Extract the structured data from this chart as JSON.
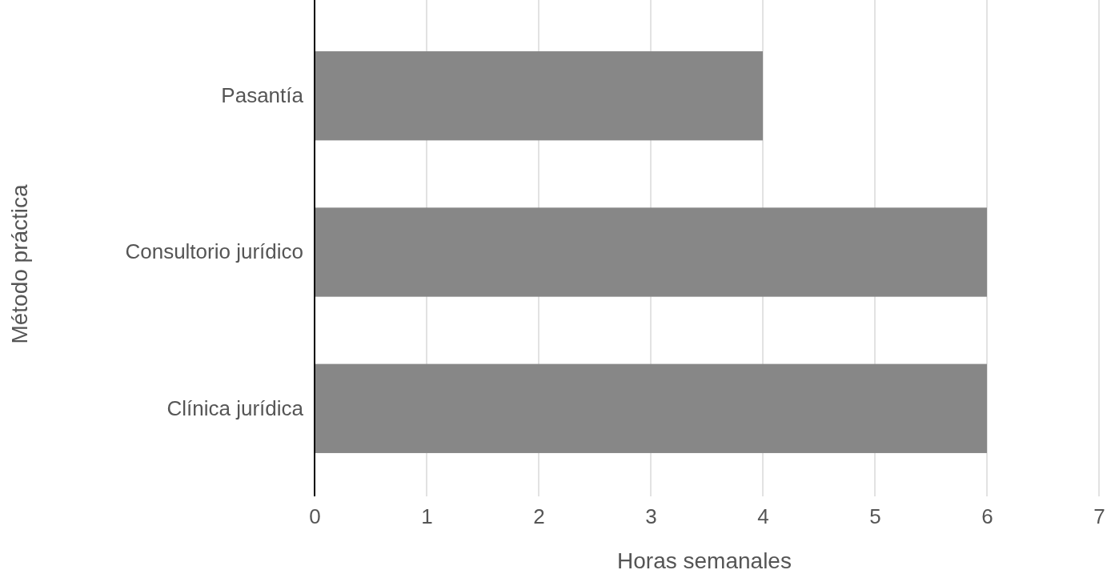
{
  "chart_data": {
    "type": "bar",
    "orientation": "horizontal",
    "xlabel": "Horas semanales",
    "ylabel": "Método práctica",
    "categories": [
      "Pasantía",
      "Consultorio jurídico",
      "Clínica jurídica"
    ],
    "values": [
      4,
      6,
      6
    ],
    "color": "#878787",
    "xlim": [
      0,
      7
    ],
    "xticks": [
      0,
      1,
      2,
      3,
      4,
      5,
      6,
      7
    ],
    "grid": "x"
  }
}
